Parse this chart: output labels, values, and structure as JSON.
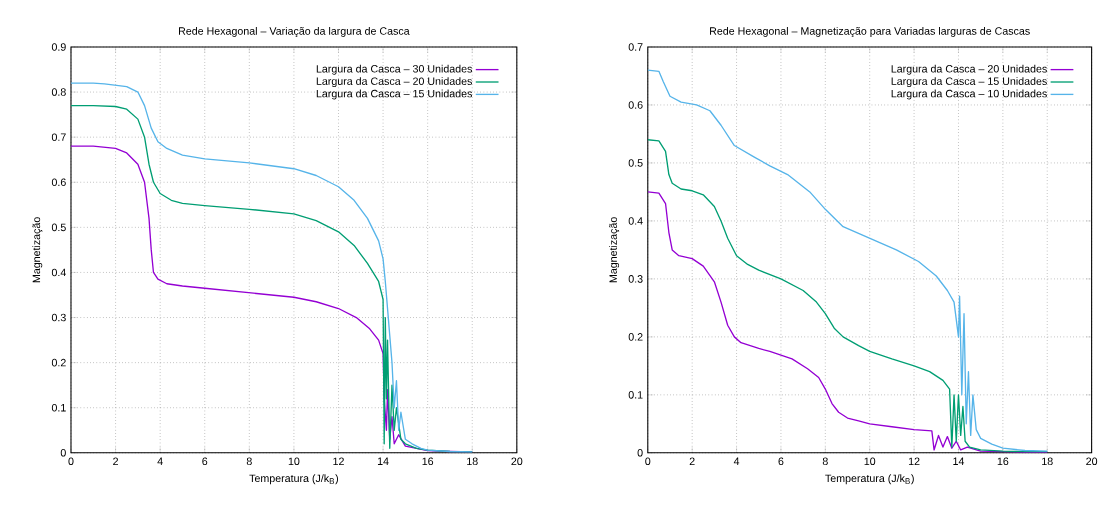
{
  "chart_data": [
    {
      "type": "line",
      "title": "Rede Hexagonal – Variação da largura de Casca",
      "xlabel": "Temperatura (J/k$_{B}$)",
      "ylabel": "Magnetização",
      "xlim": [
        0,
        20
      ],
      "ylim": [
        0,
        0.9
      ],
      "xticks": [
        0,
        2,
        4,
        6,
        8,
        10,
        12,
        14,
        16,
        18,
        20
      ],
      "yticks": [
        0,
        0.1,
        0.2,
        0.3,
        0.4,
        0.5,
        0.6,
        0.7,
        0.8,
        0.9
      ],
      "grid": true,
      "legend": "top right",
      "marker": "none",
      "line_style": "solid",
      "series": [
        {
          "name": "Largura da Casca – 30 Unidades",
          "color": "#9400d3",
          "x": [
            0,
            1,
            2,
            2.5,
            3,
            3.3,
            3.5,
            3.6,
            3.7,
            3.9,
            4.3,
            5,
            6,
            8,
            10,
            11,
            12,
            12.8,
            13.4,
            13.8,
            14,
            14.05,
            14.1,
            14.15,
            14.2,
            14.3,
            14.4,
            14.5,
            14.7,
            15,
            15.5,
            16,
            17,
            18
          ],
          "values": [
            0.68,
            0.68,
            0.675,
            0.665,
            0.64,
            0.6,
            0.52,
            0.45,
            0.4,
            0.385,
            0.375,
            0.37,
            0.365,
            0.355,
            0.345,
            0.335,
            0.32,
            0.3,
            0.275,
            0.25,
            0.22,
            0.12,
            null,
            0.05,
            0.14,
            0.03,
            0.08,
            0.02,
            0.04,
            0.015,
            0.01,
            0.005,
            0.003,
            0.002
          ]
        },
        {
          "name": "Largura da Casca – 20 Unidades",
          "color": "#009e73",
          "x": [
            0,
            1,
            2,
            2.5,
            3,
            3.3,
            3.5,
            3.7,
            4,
            4.5,
            5,
            6,
            8,
            10,
            11,
            12,
            12.7,
            13.3,
            13.8,
            14,
            14.05,
            14.1,
            14.15,
            14.2,
            14.3,
            14.4,
            14.5,
            14.6,
            14.8,
            15,
            15.5,
            16,
            17,
            18
          ],
          "values": [
            0.77,
            0.77,
            0.768,
            0.762,
            0.74,
            0.7,
            0.64,
            0.6,
            0.575,
            0.56,
            0.553,
            0.548,
            0.54,
            0.53,
            0.515,
            0.49,
            0.46,
            0.42,
            0.38,
            0.34,
            0.02,
            0.3,
            0.12,
            0.25,
            0.01,
            0.15,
            0.05,
            0.1,
            0.03,
            0.02,
            0.01,
            0.006,
            0.003,
            0.002
          ]
        },
        {
          "name": "Largura da Casca – 15 Unidades",
          "color": "#56b4e9",
          "x": [
            0,
            1,
            1.5,
            2.5,
            3,
            3.3,
            3.6,
            3.9,
            4.3,
            5,
            6,
            8,
            10,
            11,
            12,
            12.7,
            13.3,
            13.8,
            14,
            14.1,
            14.2,
            14.3,
            14.4,
            14.5,
            14.6,
            14.7,
            14.8,
            15,
            15.3,
            15.7,
            16,
            17,
            18
          ],
          "values": [
            0.82,
            0.82,
            0.818,
            0.812,
            0.8,
            0.77,
            0.72,
            0.69,
            0.675,
            0.66,
            0.652,
            0.643,
            0.63,
            0.615,
            0.59,
            0.56,
            0.52,
            0.47,
            0.43,
            0.38,
            0.32,
            0.26,
            0.2,
            0.1,
            0.16,
            0.05,
            0.09,
            0.03,
            0.02,
            0.01,
            0.006,
            0.003,
            0.002
          ]
        }
      ]
    },
    {
      "type": "line",
      "title": "Rede Hexagonal – Magnetização para Variadas larguras de Cascas",
      "xlabel": "Temperatura (J/k$_{B}$)",
      "ylabel": "Magnetização",
      "xlim": [
        0,
        20
      ],
      "ylim": [
        0,
        0.7
      ],
      "xticks": [
        0,
        2,
        4,
        6,
        8,
        10,
        12,
        14,
        16,
        18,
        20
      ],
      "yticks": [
        0,
        0.1,
        0.2,
        0.3,
        0.4,
        0.5,
        0.6,
        0.7
      ],
      "grid": true,
      "legend": "top right",
      "marker": "none",
      "line_style": "solid",
      "series": [
        {
          "name": "Largura da Casca – 20 Unidades",
          "color": "#9400d3",
          "x": [
            0,
            0.5,
            0.8,
            0.95,
            1.1,
            1.4,
            2,
            2.5,
            3,
            3.3,
            3.6,
            3.9,
            4.2,
            5,
            5.5,
            6.5,
            7.2,
            7.7,
            8,
            8.3,
            8.6,
            9,
            9.5,
            10,
            11,
            12,
            12.8,
            12.9,
            13.1,
            13.3,
            13.5,
            13.7,
            13.9,
            14.1,
            14.4,
            15,
            16,
            17,
            18
          ],
          "values": [
            0.45,
            0.448,
            0.43,
            0.38,
            0.35,
            0.34,
            0.335,
            0.322,
            0.295,
            0.26,
            0.22,
            0.2,
            0.19,
            0.18,
            0.175,
            0.162,
            0.145,
            0.13,
            0.11,
            0.085,
            0.07,
            0.06,
            0.055,
            0.05,
            0.045,
            0.04,
            0.038,
            0.005,
            0.03,
            0.01,
            0.028,
            0.008,
            0.02,
            0.005,
            0.01,
            0.003,
            0.002,
            0.001,
            0.001
          ]
        },
        {
          "name": "Largura da Casca – 15 Unidades",
          "color": "#009e73",
          "x": [
            0,
            0.5,
            0.8,
            0.95,
            1.1,
            1.5,
            2,
            2.5,
            3,
            3.3,
            3.6,
            4,
            4.5,
            5,
            6,
            7,
            7.6,
            8,
            8.4,
            8.8,
            9.5,
            10,
            11,
            12,
            12.7,
            13.3,
            13.6,
            13.7,
            13.8,
            13.9,
            14,
            14.1,
            14.2,
            14.3,
            14.5,
            15,
            16,
            17,
            18
          ],
          "values": [
            0.54,
            0.538,
            0.52,
            0.48,
            0.465,
            0.455,
            0.452,
            0.445,
            0.425,
            0.4,
            0.37,
            0.34,
            0.325,
            0.315,
            0.3,
            0.28,
            0.26,
            0.24,
            0.215,
            0.2,
            0.185,
            0.175,
            0.162,
            0.15,
            0.14,
            0.125,
            0.11,
            0.01,
            0.1,
            0.02,
            0.1,
            0.03,
            0.08,
            0.02,
            0.01,
            0.005,
            0.003,
            0.002,
            0.002
          ]
        },
        {
          "name": "Largura da Casca – 10 Unidades",
          "color": "#56b4e9",
          "x": [
            0,
            0.5,
            0.7,
            1,
            1.5,
            2.2,
            2.8,
            3.3,
            3.9,
            4.8,
            5.5,
            6.3,
            7.3,
            8,
            8.8,
            10,
            11.2,
            12.2,
            13,
            13.5,
            13.8,
            14,
            14.05,
            14.15,
            14.25,
            14.35,
            14.45,
            14.55,
            14.65,
            14.8,
            15,
            15.5,
            16,
            17,
            18
          ],
          "values": [
            0.66,
            0.658,
            0.64,
            0.615,
            0.605,
            0.6,
            0.59,
            0.565,
            0.53,
            0.51,
            0.495,
            0.48,
            0.45,
            0.42,
            0.39,
            0.37,
            0.35,
            0.33,
            0.305,
            0.28,
            0.26,
            0.2,
            0.27,
            0.1,
            0.24,
            0.05,
            0.14,
            0.03,
            0.1,
            0.04,
            0.025,
            0.015,
            0.008,
            0.004,
            0.003
          ]
        }
      ]
    }
  ]
}
